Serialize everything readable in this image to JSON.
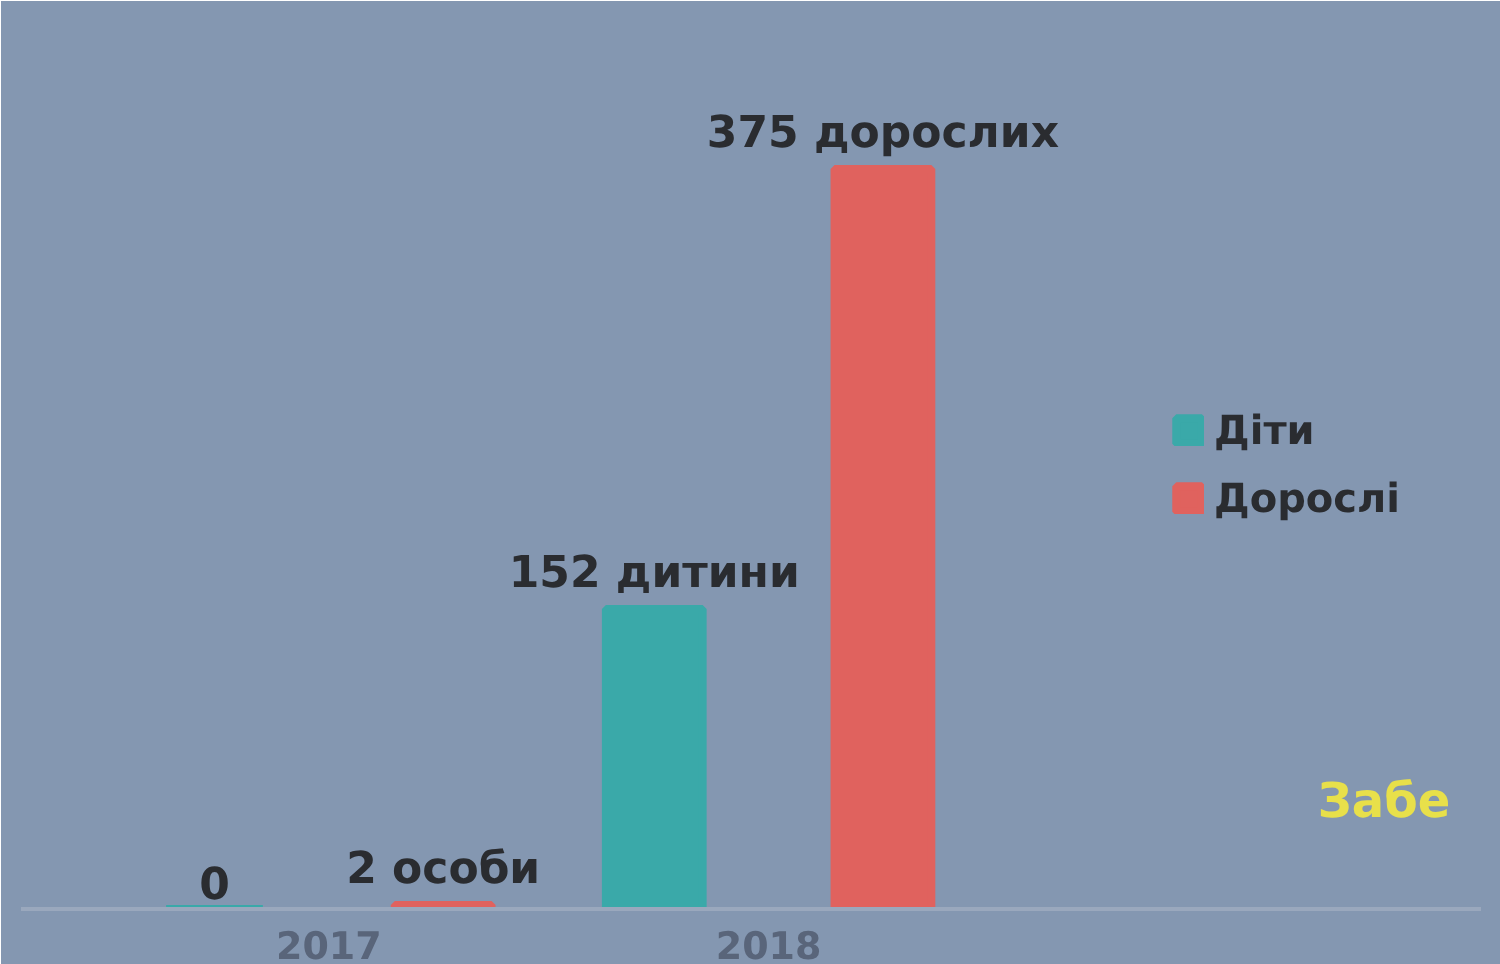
{
  "chart_data": {
    "type": "bar",
    "categories": [
      "2017",
      "2018"
    ],
    "series": [
      {
        "name": "Діти",
        "color": "#3aa9a9",
        "values": [
          0,
          152
        ],
        "value_labels": [
          "0",
          "152 дитини"
        ]
      },
      {
        "name": "Дорослі",
        "color": "#e0625e",
        "values": [
          2,
          375
        ],
        "value_labels": [
          "2 особи",
          "375 дорослих"
        ]
      }
    ],
    "tick_labels": "x",
    "grid": false,
    "legend": "right",
    "annotations": [
      "Забе"
    ]
  }
}
